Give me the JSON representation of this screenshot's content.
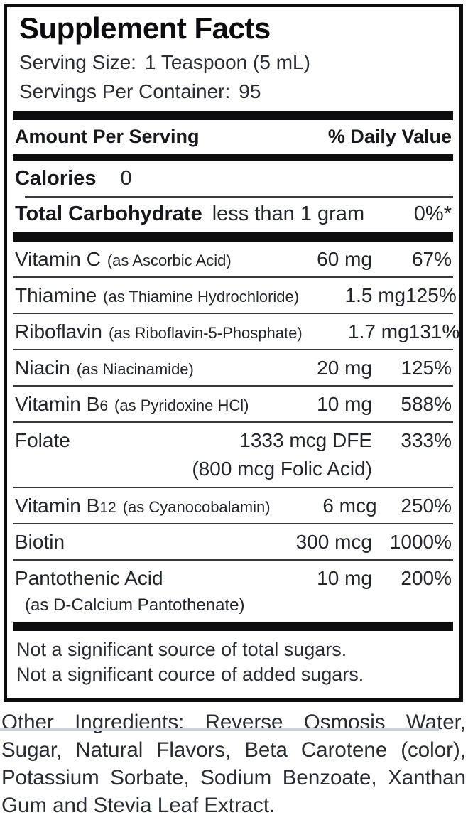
{
  "title": "Supplement Facts",
  "serving": {
    "size_label": "Serving Size:",
    "size_value": "1 Teaspoon (5 mL)",
    "per_container_label": "Servings Per Container:",
    "per_container_value": "95"
  },
  "header": {
    "amount_per_serving": "Amount Per Serving",
    "daily_value": "% Daily Value"
  },
  "calories": {
    "label": "Calories",
    "value": "0"
  },
  "carbohydrate": {
    "label": "Total Carbohydrate",
    "amount": "less than 1 gram",
    "dv": "0%*"
  },
  "nutrients": [
    {
      "name": "Vitamin C",
      "name_sub": "",
      "form": "(as Ascorbic Acid)",
      "amount": "60 mg",
      "dv": "67%"
    },
    {
      "name": "Thiamine",
      "name_sub": "",
      "form": "(as Thiamine Hydrochloride)",
      "amount": "1.5 mg",
      "dv": "125%"
    },
    {
      "name": "Riboflavin",
      "name_sub": "",
      "form": "(as Riboflavin-5-Phosphate)",
      "amount": "1.7 mg",
      "dv": "131%"
    },
    {
      "name": "Niacin",
      "name_sub": "",
      "form": "(as Niacinamide)",
      "amount": "20 mg",
      "dv": "125%"
    },
    {
      "name": "Vitamin B",
      "name_sub": "6",
      "form": "(as Pyridoxine HCl)",
      "amount": "10 mg",
      "dv": "588%"
    },
    {
      "name": "Folate",
      "name_sub": "",
      "form": "",
      "amount": "1333 mcg DFE",
      "dv": "333%",
      "sub_amount": "(800 mcg Folic Acid)"
    },
    {
      "name": "Vitamin B",
      "name_sub": "12",
      "form": "(as Cyanocobalamin)",
      "amount": "6 mcg",
      "dv": "250%"
    },
    {
      "name": "Biotin",
      "name_sub": "",
      "form": "",
      "amount": "300 mcg",
      "dv": "1000%"
    },
    {
      "name": "Pantothenic Acid",
      "name_sub": "",
      "form": "",
      "amount": "10 mg",
      "dv": "200%",
      "sub_name": "(as D-Calcium Pantothenate)"
    }
  ],
  "footnotes": [
    "Not a significant source of total sugars.",
    "Not a significant cource of added sugars."
  ],
  "other_ingredients": "Other Ingredients: Reverse Osmosis Water, Sugar, Natural Flavors, Beta Carotene (color), Potassium Sorbate, Sodium Benzoate, Xanthan Gum and Stevia Leaf Extract.",
  "colors": {
    "text": "#23252c",
    "border": "#0d0d10",
    "bar": "#0d0d10"
  }
}
